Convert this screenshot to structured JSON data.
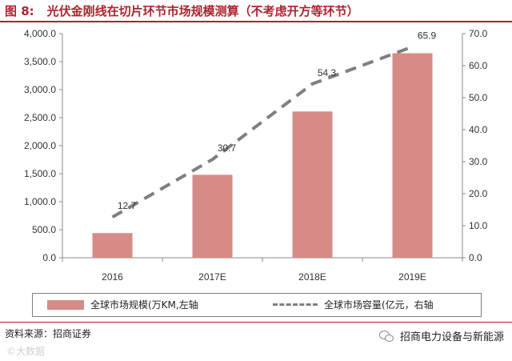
{
  "figure": {
    "label": "图 8:",
    "title": "光伏金刚线在切片环节市场规模测算（不考虑开方等环节）"
  },
  "chart_data": {
    "type": "bar",
    "categories": [
      "2016",
      "2017E",
      "2018E",
      "2019E"
    ],
    "series": [
      {
        "name": "全球市场规模(万KM,左轴",
        "type": "bar",
        "axis": "left",
        "values": [
          440,
          1480,
          2610,
          3650
        ],
        "color": "#d68b87"
      },
      {
        "name": "全球市场容量(亿元，右轴",
        "type": "line",
        "axis": "right",
        "style": "dashed",
        "values": [
          12.7,
          30.7,
          54.3,
          65.9
        ],
        "data_labels": [
          "12.7",
          "30.7",
          "54.3",
          "65.9"
        ],
        "color": "#7f7f7f"
      }
    ],
    "y_left": {
      "ylim": [
        0,
        4000
      ],
      "ticks": [
        0,
        500,
        1000,
        1500,
        2000,
        2500,
        3000,
        3500,
        4000
      ],
      "tick_labels": [
        "0.0",
        "500.0",
        "1,000.0",
        "1,500.0",
        "2,000.0",
        "2,500.0",
        "3,000.0",
        "3,500.0",
        "4,000.0"
      ]
    },
    "y_right": {
      "ylim": [
        0,
        70
      ],
      "ticks": [
        0,
        10,
        20,
        30,
        40,
        50,
        60,
        70
      ],
      "tick_labels": [
        "0.0",
        "10.0",
        "20.0",
        "30.0",
        "40.0",
        "50.0",
        "60.0",
        "70.0"
      ]
    },
    "grid": false,
    "legend": "bottom"
  },
  "footer": {
    "source": "资料来源：招商证券",
    "brand": "招商电力设备与新能源",
    "watermark": "©大数据"
  },
  "icons": {
    "brand": "wechat-icon"
  }
}
